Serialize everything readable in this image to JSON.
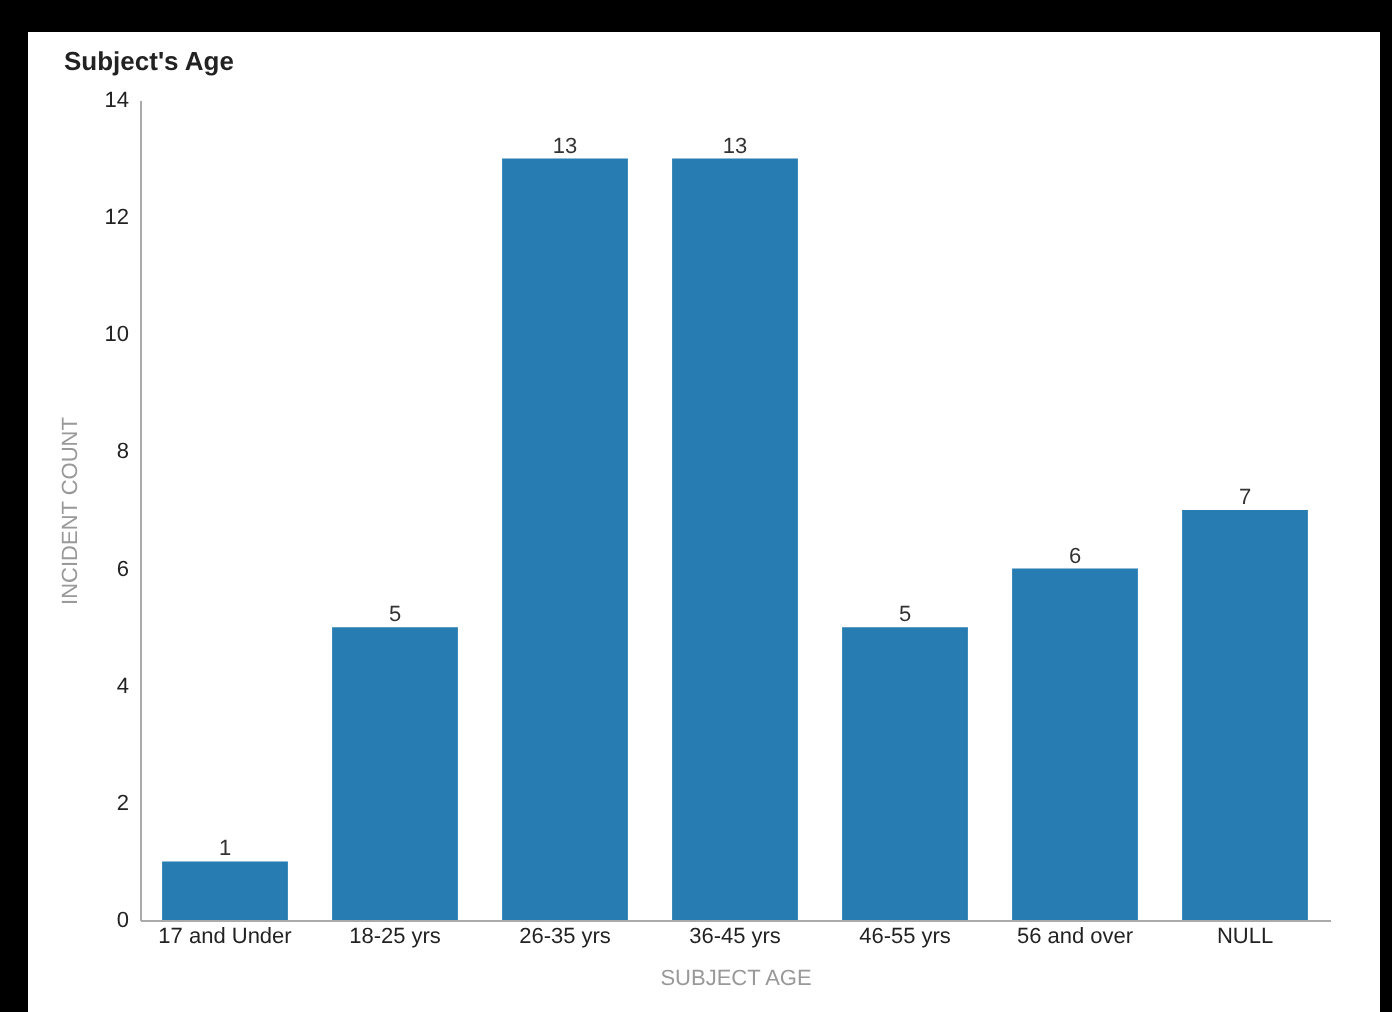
{
  "chart_data": {
    "type": "bar",
    "title": "Subject's Age",
    "xlabel": "SUBJECT AGE",
    "ylabel": "INCIDENT COUNT",
    "categories": [
      "17 and Under",
      "18-25 yrs",
      "26-35 yrs",
      "36-45 yrs",
      "46-55 yrs",
      "56 and over",
      "NULL"
    ],
    "values": [
      1,
      5,
      13,
      13,
      5,
      6,
      7
    ],
    "color": "#277cb2",
    "ylim": [
      0,
      14
    ],
    "yticks": [
      0,
      2,
      4,
      6,
      8,
      10,
      12,
      14
    ],
    "grid": false,
    "data_labels": true
  }
}
